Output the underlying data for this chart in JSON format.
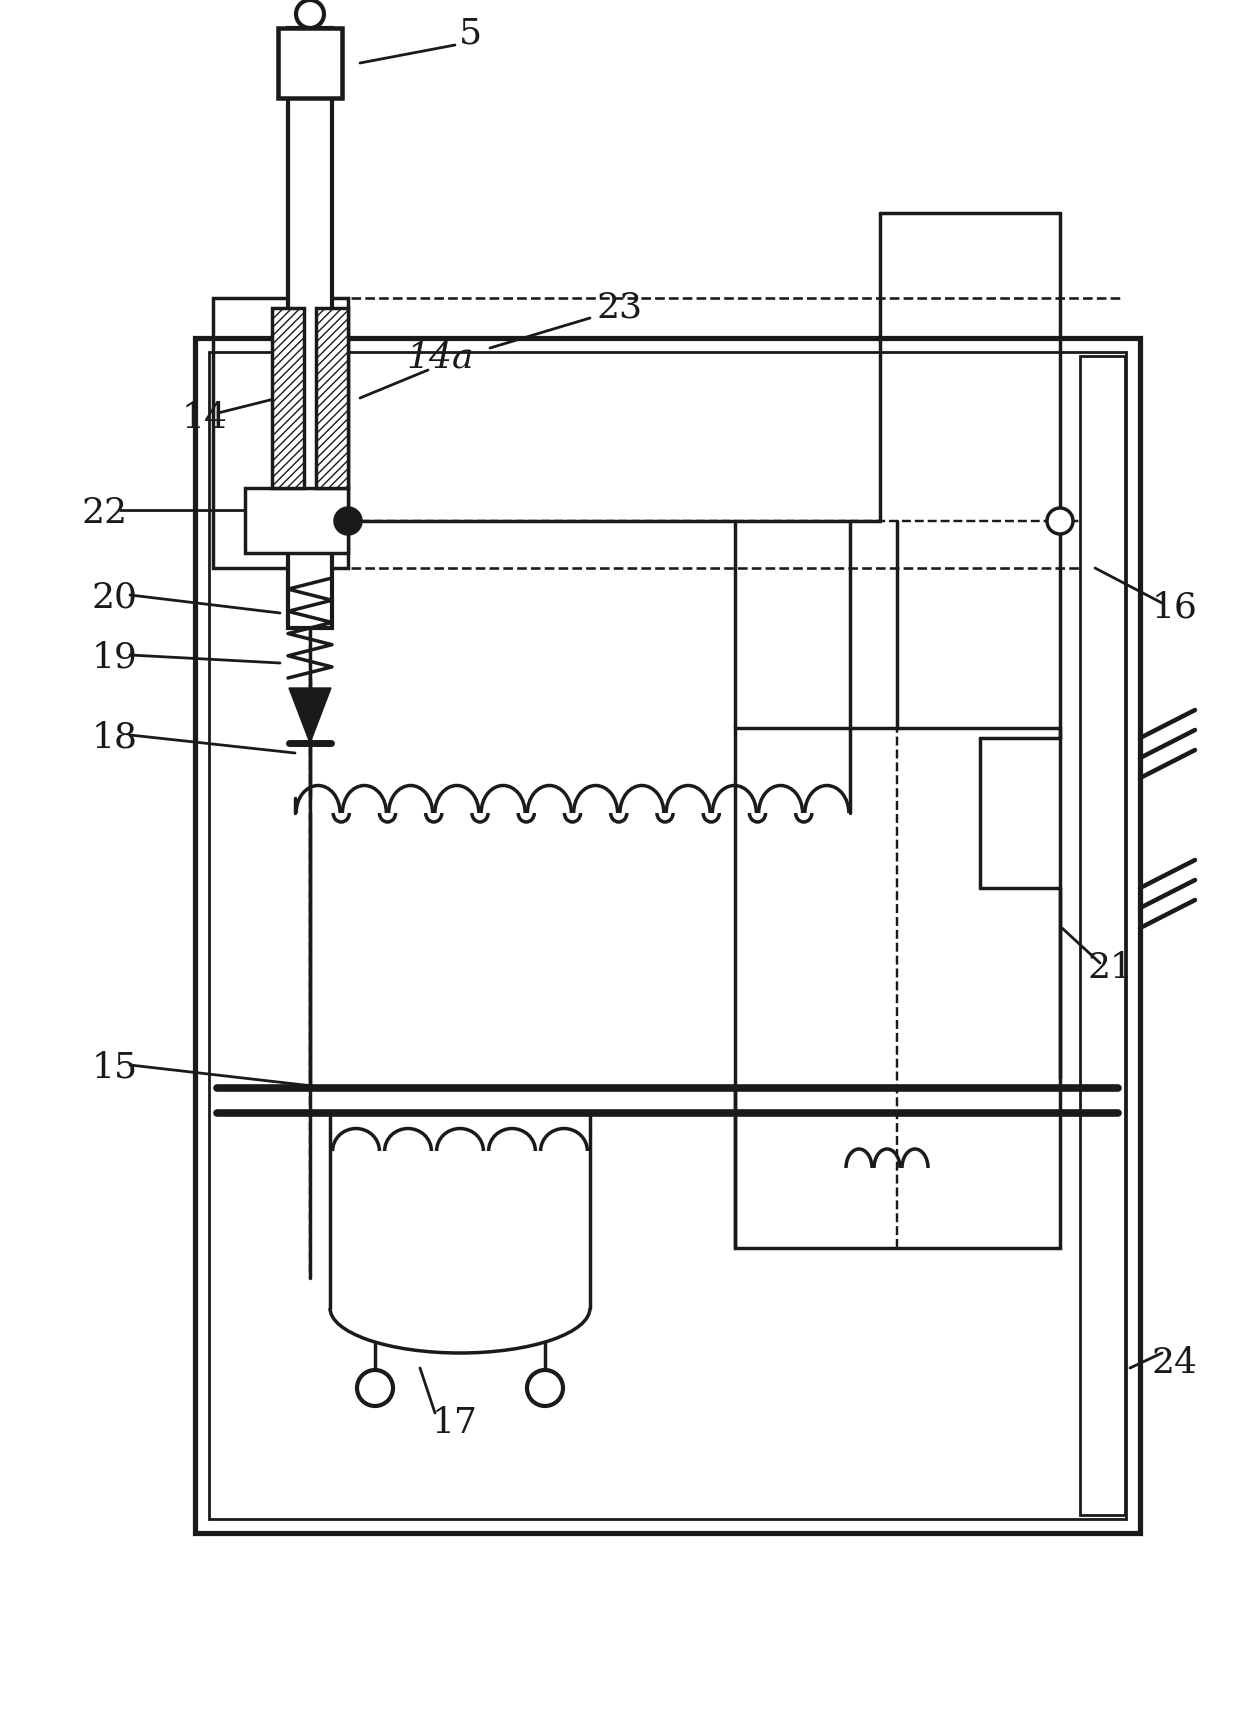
{
  "bg": "#ffffff",
  "lc": "#1a1a1a",
  "lw": 2.5,
  "fw": 12.4,
  "fh": 17.28,
  "dpi": 100
}
